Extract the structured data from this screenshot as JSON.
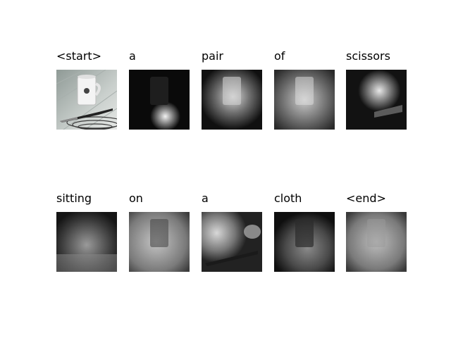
{
  "tokens": [
    "<start>",
    "a",
    "pair",
    "of",
    "scissors",
    "sitting",
    "on",
    "a",
    "cloth",
    "<end>"
  ]
}
